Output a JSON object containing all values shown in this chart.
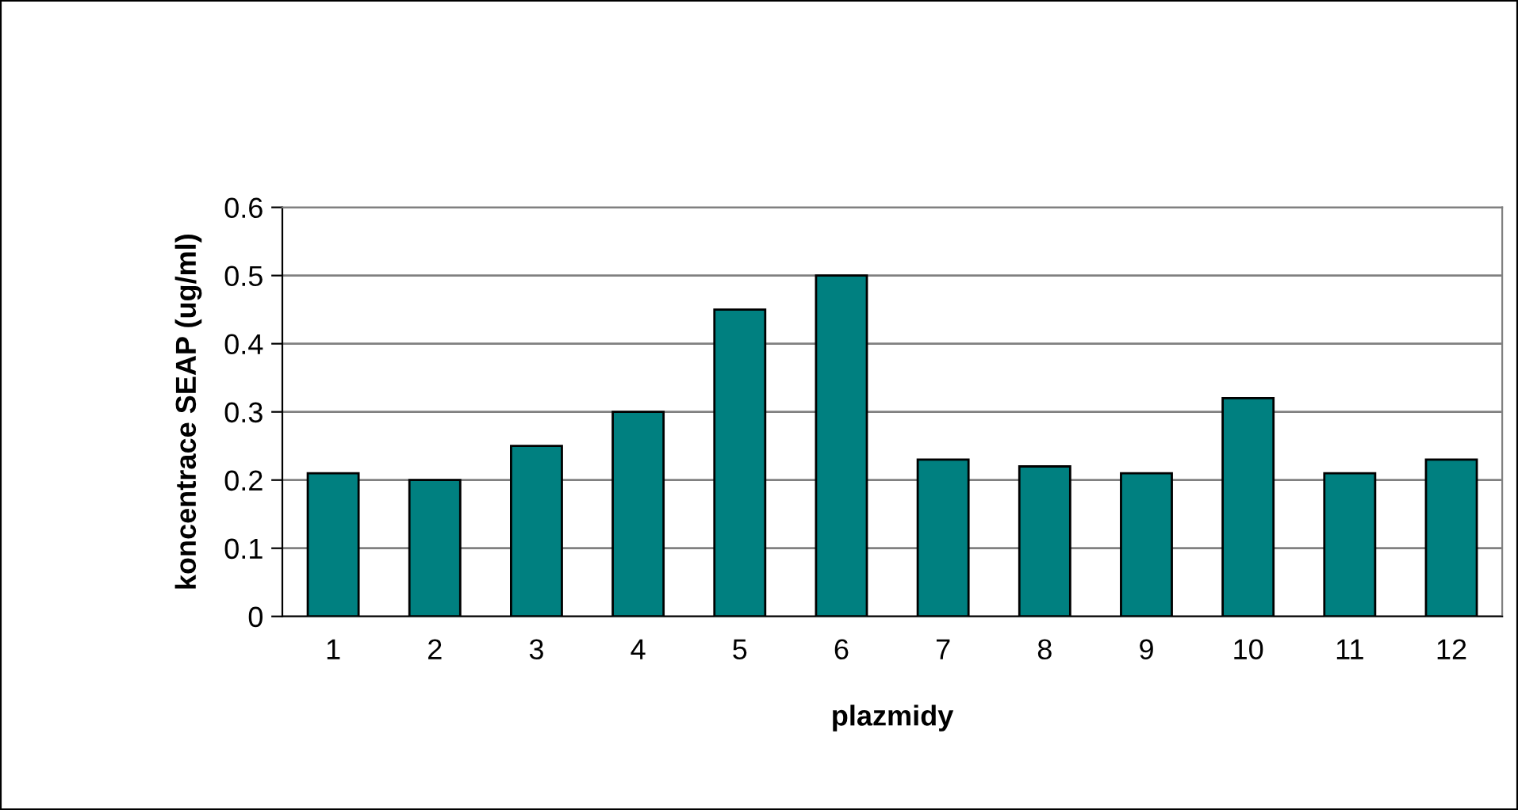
{
  "chart_data": {
    "type": "bar",
    "xlabel": "plazmidy",
    "ylabel": "koncentrace SEAP (ug/ml)",
    "categories": [
      "1",
      "2",
      "3",
      "4",
      "5",
      "6",
      "7",
      "8",
      "9",
      "10",
      "11",
      "12"
    ],
    "values": [
      0.21,
      0.2,
      0.25,
      0.3,
      0.45,
      0.5,
      0.23,
      0.22,
      0.21,
      0.32,
      0.21,
      0.23
    ],
    "color": "#008080",
    "ylim": [
      0,
      0.6
    ],
    "yticks": [
      0,
      0.1,
      0.2,
      0.3,
      0.4,
      0.5,
      0.6
    ],
    "grid": "y",
    "legend": false
  }
}
